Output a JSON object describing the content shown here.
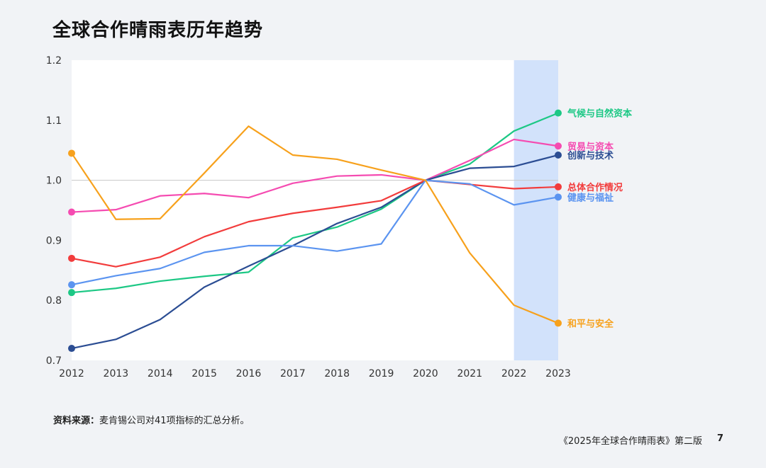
{
  "page": {
    "title": "全球合作晴雨表历年趋势",
    "source_label": "资料来源：",
    "source_text": "麦肯锡公司对41项指标的汇总分析。",
    "footer": "《2025年全球合作晴雨表》第二版",
    "page_number": "7"
  },
  "chart_data": {
    "type": "line",
    "title": "全球合作晴雨表历年趋势",
    "x": [
      "2012",
      "2013",
      "2014",
      "2015",
      "2016",
      "2017",
      "2018",
      "2019",
      "2020",
      "2021",
      "2022",
      "2023"
    ],
    "ylim": [
      0.7,
      1.2
    ],
    "yticks": [
      "0.7",
      "0.8",
      "0.9",
      "1.0",
      "1.1",
      "1.2"
    ],
    "reference_line": 1.0,
    "highlight_range": [
      "2022",
      "2023"
    ],
    "grid": false,
    "legend_placement": "end-of-line labels (right)",
    "series": [
      {
        "name": "气候与自然资本",
        "color": "#1dc885",
        "values": [
          0.813,
          0.82,
          0.832,
          0.84,
          0.847,
          0.904,
          0.922,
          0.952,
          1.0,
          1.027,
          1.082,
          1.112
        ]
      },
      {
        "name": "贸易与资本",
        "color": "#f54bb1",
        "values": [
          0.947,
          0.951,
          0.974,
          0.978,
          0.971,
          0.995,
          1.007,
          1.009,
          1.0,
          1.033,
          1.068,
          1.057
        ]
      },
      {
        "name": "创新与技术",
        "color": "#2b4d93",
        "values": [
          0.72,
          0.735,
          0.768,
          0.822,
          0.857,
          0.891,
          0.928,
          0.955,
          1.0,
          1.02,
          1.023,
          1.042
        ]
      },
      {
        "name": "总体合作情况",
        "color": "#f23c3c",
        "values": [
          0.87,
          0.856,
          0.872,
          0.906,
          0.931,
          0.945,
          0.955,
          0.966,
          1.0,
          0.993,
          0.986,
          0.989
        ]
      },
      {
        "name": "健康与福祉",
        "color": "#5b94f0",
        "values": [
          0.826,
          0.841,
          0.853,
          0.88,
          0.891,
          0.891,
          0.882,
          0.894,
          1.0,
          0.994,
          0.959,
          0.972
        ]
      },
      {
        "name": "和平与安全",
        "color": "#f7a11c",
        "values": [
          1.045,
          0.935,
          0.936,
          1.012,
          1.09,
          1.042,
          1.035,
          1.017,
          1.0,
          0.879,
          0.792,
          0.762
        ]
      }
    ]
  }
}
